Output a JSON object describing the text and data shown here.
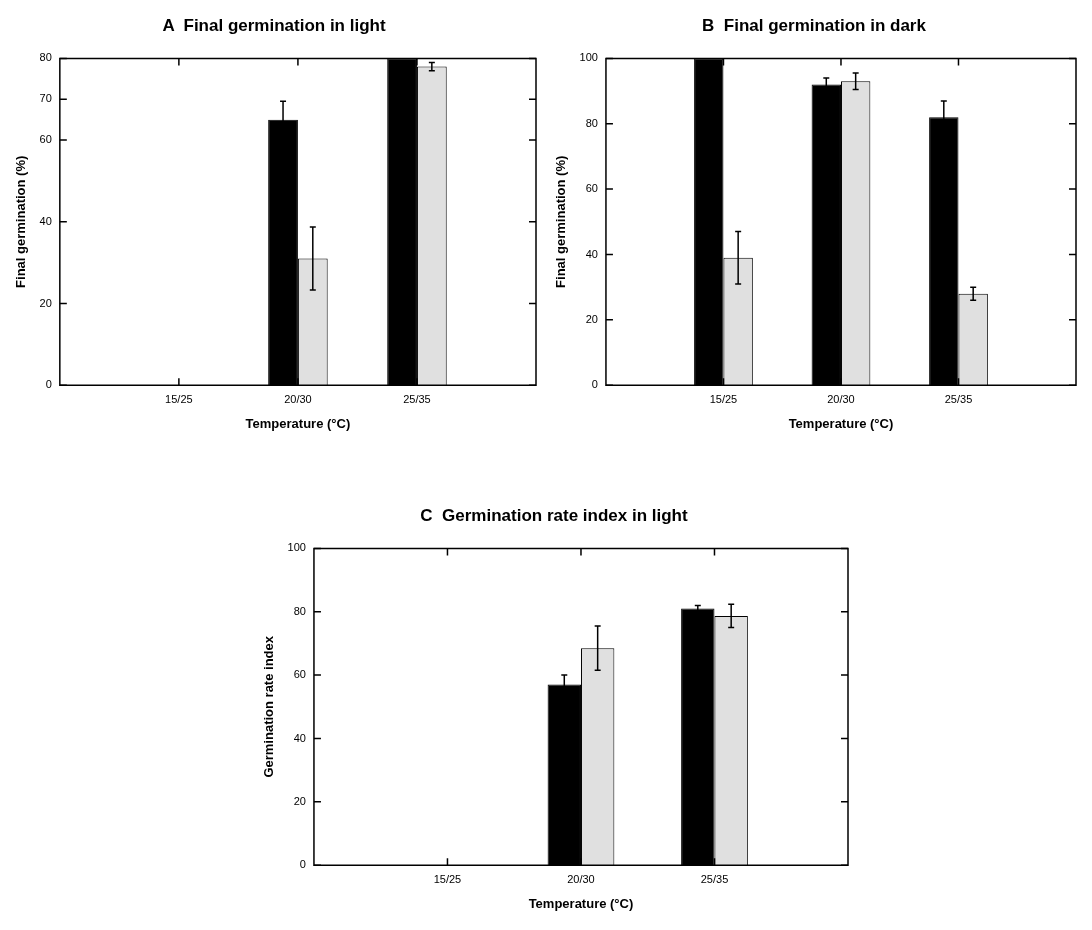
{
  "chart_data": [
    {
      "type": "bar",
      "title": "A  Final germination in light",
      "xlabel": "Temperature (°C)",
      "ylabel": "Final germination (%)",
      "categories": [
        "15/25",
        "20/30",
        "25/35"
      ],
      "ylim": [
        0,
        80
      ],
      "yticks": [
        0,
        20,
        40,
        60,
        70,
        80
      ],
      "series": [
        {
          "color": "#000000",
          "values": [
            0,
            65,
            80
          ],
          "errors": [
            null,
            4.5,
            null
          ]
        },
        {
          "color": "#e0e0e0",
          "values": [
            0,
            31,
            78
          ],
          "errors": [
            null,
            7.7,
            1
          ]
        }
      ]
    },
    {
      "type": "bar",
      "title": "B  Final germination in dark",
      "xlabel": "Temperature (°C)",
      "ylabel": "Final germination (%)",
      "categories": [
        "15/25",
        "20/30",
        "25/35"
      ],
      "ylim": [
        0,
        100
      ],
      "yticks": [
        0,
        20,
        40,
        60,
        80,
        100
      ],
      "series": [
        {
          "color": "#000000",
          "values": [
            100,
            92,
            82
          ],
          "errors": [
            null,
            2,
            5
          ]
        },
        {
          "color": "#e0e0e0",
          "values": [
            39,
            93,
            28
          ],
          "errors": [
            8,
            2.5,
            2
          ]
        }
      ]
    },
    {
      "type": "bar",
      "title": "C  Germination rate index in light",
      "xlabel": "Temperature (°C)",
      "ylabel": "Germination rate index",
      "categories": [
        "15/25",
        "20/30",
        "25/35"
      ],
      "ylim": [
        0,
        100
      ],
      "yticks": [
        0,
        20,
        40,
        60,
        80,
        100
      ],
      "series": [
        {
          "color": "#000000",
          "values": [
            0,
            57,
            81
          ],
          "errors": [
            null,
            3,
            1
          ]
        },
        {
          "color": "#e0e0e0",
          "values": [
            0,
            68.5,
            78.7
          ],
          "errors": [
            null,
            7,
            3.7
          ]
        }
      ]
    }
  ]
}
